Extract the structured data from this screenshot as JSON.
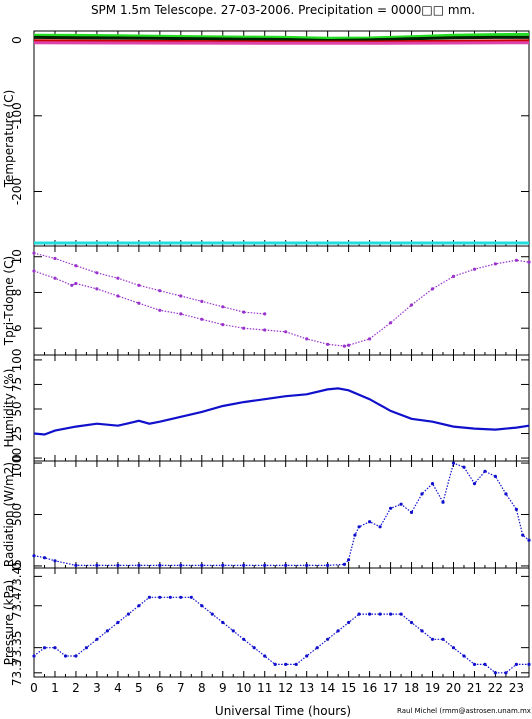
{
  "page": {
    "title": "SPM 1.5m Telescope. 27-03-2006. Precipitation = 0000□□ mm.",
    "xlabel": "Universal Time (hours)",
    "credit": "Raul Michel (rmm@astrosen.unam.mx)"
  },
  "colors": {
    "temp_green": "#22dd22",
    "temp_dark": "#002200",
    "temp_red": "#cc0000",
    "temp_magenta": "#dd44aa",
    "temp_cyan": "#22dddd",
    "purple": "#9933cc",
    "blue": "#1111cc"
  },
  "chart_data": [
    {
      "type": "line",
      "ylabel": "Temperature (C)",
      "x_range": [
        0,
        23.6
      ],
      "ylim": [
        -272,
        12
      ],
      "yticks": [
        0,
        -100,
        -200
      ],
      "series": [
        {
          "color": "#22dd22",
          "x": [
            0,
            2,
            4,
            6,
            8,
            10,
            12,
            14,
            16,
            18,
            20,
            22,
            23.6
          ],
          "values": [
            6.5,
            6.2,
            5.8,
            5.0,
            4.5,
            4.0,
            3.5,
            2.5,
            2.8,
            4.5,
            6.5,
            7.2,
            7.5
          ]
        },
        {
          "color": "#002200",
          "x": [
            0,
            2,
            4,
            6,
            8,
            10,
            12,
            14,
            16,
            18,
            20,
            22,
            23.6
          ],
          "values": [
            3.5,
            3.0,
            2.8,
            2.2,
            1.8,
            1.2,
            0.8,
            -0.5,
            0.2,
            1.8,
            3.0,
            3.5,
            3.6
          ]
        },
        {
          "color": "#cc0000",
          "x": [
            0,
            4,
            8,
            12,
            16,
            20,
            23.6
          ],
          "values": [
            -1,
            -1.5,
            -2,
            -2.5,
            -2.5,
            -1.5,
            -1
          ]
        },
        {
          "color": "#dd44aa",
          "x": [
            0,
            4,
            8,
            12,
            16,
            20,
            23.6
          ],
          "values": [
            -3.5,
            -3.8,
            -4,
            -4.2,
            -4.2,
            -3.8,
            -3.5
          ]
        },
        {
          "color": "#22dddd",
          "x": [
            0,
            23.6
          ],
          "values": [
            -268,
            -268
          ]
        }
      ]
    },
    {
      "type": "scatter",
      "ylabel": "Tpri-Tdome (C)",
      "x_range": [
        0,
        23.6
      ],
      "ylim": [
        4.5,
        10.6
      ],
      "yticks": [
        6,
        8,
        10
      ],
      "series": [
        {
          "color": "#9933cc",
          "x": [
            0,
            1,
            1.8,
            2,
            3,
            4,
            5,
            6,
            7,
            8,
            9,
            10,
            11,
            12,
            13,
            14,
            14.8,
            15,
            16,
            17,
            18,
            19,
            20,
            21,
            22,
            23,
            23.6
          ],
          "values": [
            9.2,
            8.8,
            8.4,
            8.5,
            8.2,
            7.8,
            7.4,
            7.0,
            6.8,
            6.5,
            6.2,
            6.0,
            5.9,
            5.8,
            5.4,
            5.1,
            5.0,
            5.05,
            5.4,
            6.3,
            7.3,
            8.2,
            8.9,
            9.3,
            9.6,
            9.8,
            9.7
          ]
        },
        {
          "color": "#9933cc",
          "x": [
            0,
            1,
            2,
            3,
            4,
            5,
            6,
            7,
            8,
            9,
            10,
            11
          ],
          "values": [
            10.2,
            9.9,
            9.5,
            9.1,
            8.8,
            8.4,
            8.1,
            7.8,
            7.5,
            7.2,
            6.9,
            6.8
          ]
        }
      ]
    },
    {
      "type": "line",
      "ylabel": "Humidity (%)",
      "x_range": [
        0,
        23.6
      ],
      "ylim": [
        -3,
        105
      ],
      "yticks": [
        0,
        25,
        50,
        75,
        100
      ],
      "series": [
        {
          "color": "#1111cc",
          "x": [
            0,
            0.5,
            1,
            2,
            3,
            4,
            5,
            5.5,
            6,
            7,
            8,
            9,
            10,
            11,
            12,
            13,
            14,
            14.5,
            15,
            16,
            17,
            18,
            19,
            20,
            21,
            22,
            23,
            23.6
          ],
          "values": [
            25,
            24,
            28,
            32,
            35,
            33,
            38,
            35,
            37,
            42,
            47,
            53,
            57,
            60,
            63,
            65,
            70,
            71,
            69,
            60,
            48,
            40,
            37,
            32,
            30,
            29,
            31,
            33
          ]
        }
      ]
    },
    {
      "type": "scatter",
      "ylabel": "Radiation (W/m2)",
      "x_range": [
        0,
        23.6
      ],
      "ylim": [
        -20,
        1020
      ],
      "yticks": [
        0,
        500,
        1000
      ],
      "series": [
        {
          "color": "#1111cc",
          "x": [
            0,
            0.5,
            1,
            2,
            3,
            4,
            5,
            6,
            7,
            8,
            9,
            10,
            11,
            12,
            13,
            14,
            14.8,
            15,
            15.3,
            15.5,
            16,
            16.5,
            17,
            17.5,
            18,
            18.5,
            19,
            19.5,
            20,
            20.5,
            21,
            21.5,
            22,
            22.5,
            23,
            23.3,
            23.6
          ],
          "values": [
            100,
            80,
            50,
            5,
            5,
            5,
            5,
            5,
            5,
            5,
            5,
            5,
            5,
            5,
            5,
            5,
            15,
            60,
            300,
            380,
            430,
            380,
            560,
            600,
            520,
            700,
            800,
            620,
            1000,
            960,
            800,
            920,
            870,
            700,
            550,
            300,
            250
          ]
        }
      ]
    },
    {
      "type": "scatter",
      "ylabel": "Pressure (kPa)",
      "x_range": [
        0,
        23.6
      ],
      "ylim": [
        73.325,
        73.455
      ],
      "yticks": [
        73.35,
        73.4,
        73.45
      ],
      "yticklabels": [
        "73.3",
        "73.35",
        "73.4",
        "73.45"
      ],
      "yticklabel_values": [
        73.33,
        73.36,
        73.41,
        73.445
      ],
      "series": [
        {
          "color": "#1111cc",
          "x": [
            0,
            0.5,
            1,
            1.5,
            2,
            2.5,
            3,
            3.5,
            4,
            4.5,
            5,
            5.5,
            6,
            6.5,
            7,
            7.5,
            8,
            8.5,
            9,
            9.5,
            10,
            10.5,
            11,
            11.5,
            12,
            12.5,
            13,
            13.5,
            14,
            14.5,
            15,
            15.5,
            16,
            16.5,
            17,
            17.5,
            18,
            18.5,
            19,
            19.5,
            20,
            20.5,
            21,
            21.5,
            22,
            22.5,
            23,
            23.6
          ],
          "values": [
            73.35,
            73.36,
            73.36,
            73.35,
            73.35,
            73.36,
            73.37,
            73.38,
            73.39,
            73.4,
            73.41,
            73.42,
            73.42,
            73.42,
            73.42,
            73.42,
            73.41,
            73.4,
            73.39,
            73.38,
            73.37,
            73.36,
            73.35,
            73.34,
            73.34,
            73.34,
            73.35,
            73.36,
            73.37,
            73.38,
            73.39,
            73.4,
            73.4,
            73.4,
            73.4,
            73.4,
            73.39,
            73.38,
            73.37,
            73.37,
            73.36,
            73.35,
            73.34,
            73.34,
            73.33,
            73.33,
            73.34,
            73.34
          ]
        }
      ]
    }
  ]
}
